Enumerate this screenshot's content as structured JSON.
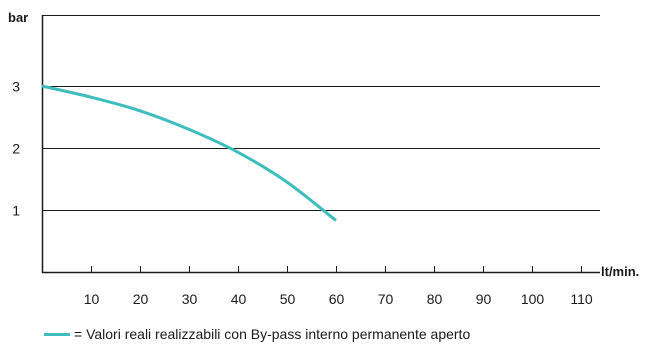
{
  "chart_data": {
    "type": "line",
    "title": "",
    "ylabel": "bar",
    "xlabel": "lt/min.",
    "xlim": [
      0,
      120
    ],
    "ylim": [
      0,
      4
    ],
    "x_ticks": [
      10,
      20,
      30,
      40,
      50,
      60,
      70,
      80,
      90,
      100,
      110
    ],
    "y_ticks": [
      1,
      2,
      3
    ],
    "grid": "horizontal",
    "legend_position": "bottom",
    "series": [
      {
        "name": "Valori reali realizzabili con By-pass interno permanente aperto",
        "color": "#3dbdbd",
        "x": [
          0,
          10,
          20,
          30,
          40,
          50,
          60
        ],
        "y": [
          3.0,
          2.82,
          2.6,
          2.3,
          1.93,
          1.45,
          0.83
        ]
      }
    ]
  },
  "legend": {
    "label": "= Valori reali realizzabili con By-pass interno permanente aperto",
    "color": "#3dbdbd"
  }
}
